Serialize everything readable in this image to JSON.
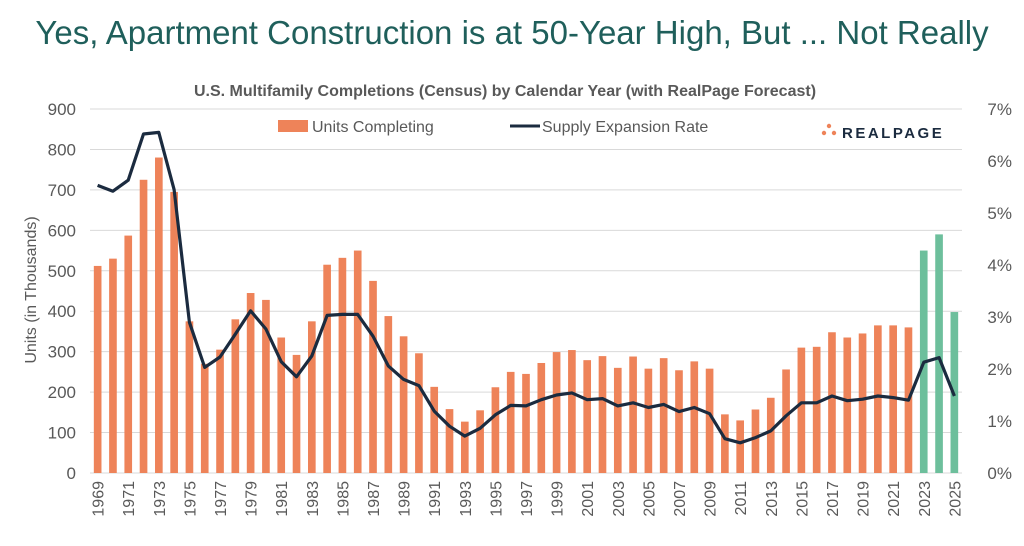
{
  "headline": "Yes, Apartment Construction is at 50-Year High, But ... Not Really",
  "logo_text": "REALPAGE",
  "colors": {
    "headline": "#1f5f5b",
    "bars": "#ee8359",
    "forecast_bars": "#6dbf9c",
    "line": "#1b2b3f",
    "logo_text": "#1b2b3f",
    "logo_dots": "#ee8359"
  },
  "chart_data": {
    "type": "bar",
    "title": "U.S. Multifamily Completions (Census) by Calendar Year (with RealPage Forecast)",
    "ylabel": "Units (in Thousands)",
    "y2label": "",
    "ylim": [
      0,
      900
    ],
    "y2lim": [
      0,
      0.07
    ],
    "yticks": [
      "0",
      "100",
      "200",
      "300",
      "400",
      "500",
      "600",
      "700",
      "800",
      "900"
    ],
    "y2ticks": [
      "0%",
      "1%",
      "2%",
      "3%",
      "4%",
      "5%",
      "6%",
      "7%"
    ],
    "grid": true,
    "legend_position": "top",
    "x": [
      1969,
      1970,
      1971,
      1972,
      1973,
      1974,
      1975,
      1976,
      1977,
      1978,
      1979,
      1980,
      1981,
      1982,
      1983,
      1984,
      1985,
      1986,
      1987,
      1988,
      1989,
      1990,
      1991,
      1992,
      1993,
      1994,
      1995,
      1996,
      1997,
      1998,
      1999,
      2000,
      2001,
      2002,
      2003,
      2004,
      2005,
      2006,
      2007,
      2008,
      2009,
      2010,
      2011,
      2012,
      2013,
      2014,
      2015,
      2016,
      2017,
      2018,
      2019,
      2020,
      2021,
      2022,
      2023,
      2024,
      2025
    ],
    "x_tick_labels": [
      "1969",
      "1971",
      "1973",
      "1975",
      "1977",
      "1979",
      "1981",
      "1983",
      "1985",
      "1987",
      "1989",
      "1991",
      "1993",
      "1995",
      "1997",
      "1999",
      "2001",
      "2003",
      "2005",
      "2007",
      "2009",
      "2011",
      "2013",
      "2015",
      "2017",
      "2019",
      "2021",
      "2023",
      "2025"
    ],
    "forecast_years": [
      2023,
      2024,
      2025
    ],
    "series": [
      {
        "name": "Units Completing",
        "type": "bar",
        "axis": "left",
        "values": [
          512,
          530,
          587,
          725,
          780,
          695,
          375,
          270,
          305,
          380,
          445,
          428,
          335,
          292,
          375,
          515,
          532,
          550,
          475,
          388,
          338,
          296,
          213,
          158,
          127,
          155,
          212,
          250,
          245,
          272,
          299,
          304,
          279,
          289,
          260,
          288,
          258,
          284,
          254,
          276,
          258,
          145,
          130,
          157,
          186,
          256,
          310,
          312,
          348,
          335,
          345,
          365,
          365,
          360,
          550,
          590,
          398
        ]
      },
      {
        "name": "Supply Expansion Rate",
        "type": "line",
        "axis": "right",
        "values": [
          0.0553,
          0.0542,
          0.0563,
          0.0652,
          0.0655,
          0.0545,
          0.029,
          0.0203,
          0.0223,
          0.0267,
          0.0312,
          0.0277,
          0.0214,
          0.0185,
          0.0225,
          0.0303,
          0.0305,
          0.0305,
          0.0263,
          0.0206,
          0.018,
          0.0168,
          0.0119,
          0.009,
          0.0071,
          0.0086,
          0.0112,
          0.013,
          0.0129,
          0.0141,
          0.015,
          0.0154,
          0.0141,
          0.0143,
          0.0129,
          0.0135,
          0.0126,
          0.0132,
          0.0118,
          0.0126,
          0.0114,
          0.0066,
          0.0058,
          0.0068,
          0.0081,
          0.011,
          0.0135,
          0.0135,
          0.0148,
          0.0139,
          0.0142,
          0.0148,
          0.0145,
          0.014,
          0.0213,
          0.0222,
          0.0148
        ]
      }
    ]
  }
}
